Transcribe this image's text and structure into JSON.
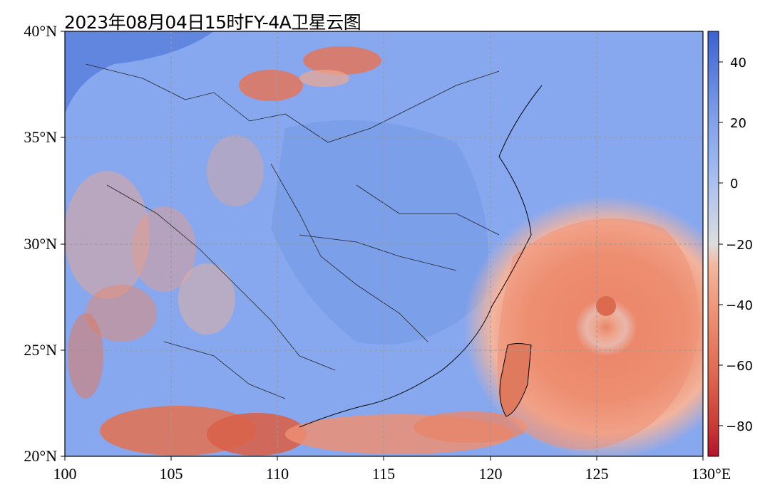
{
  "title": "2023年08月04日15时FY-4A卫星云图",
  "map": {
    "lon_range": [
      100,
      130
    ],
    "lat_range": [
      20,
      40
    ],
    "lon_ticks": [
      "100",
      "105",
      "110",
      "115",
      "120",
      "125",
      "130°E"
    ],
    "lat_ticks": [
      "40°N",
      "35°N",
      "30°N",
      "25°N",
      "20°N"
    ],
    "gridlines": true,
    "typhoon_center": {
      "lon": 125.5,
      "lat": 27.3
    }
  },
  "colorbar": {
    "ticks": [
      "40",
      "20",
      "0",
      "−20",
      "−40",
      "−60",
      "−80"
    ],
    "range": [
      -90,
      50
    ],
    "colors": {
      "warm": "#3b62d3",
      "mid": "#dcdcdc",
      "cold": "#b5122c"
    }
  }
}
